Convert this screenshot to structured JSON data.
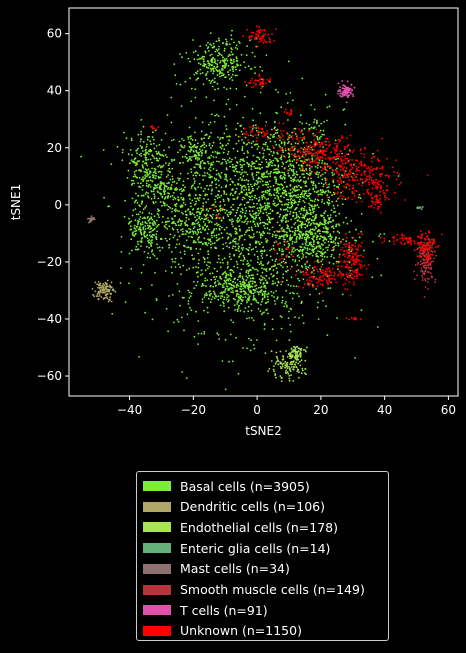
{
  "chart_data": {
    "type": "scatter",
    "title": "",
    "xlabel": "tSNE2",
    "ylabel": "tSNE1",
    "xlim": [
      -59,
      63
    ],
    "ylim": [
      -67,
      69
    ],
    "xticks": [
      -40,
      -20,
      0,
      20,
      40,
      60
    ],
    "yticks": [
      -60,
      -40,
      -20,
      0,
      20,
      40,
      60
    ],
    "xtick_labels": [
      "−40",
      "−20",
      "0",
      "20",
      "40",
      "60"
    ],
    "ytick_labels": [
      "−60",
      "−40",
      "−20",
      "0",
      "20",
      "40",
      "60"
    ],
    "grid": false,
    "legend_position": "bottom-center",
    "series": [
      {
        "name": "Basal cells (n=3905)",
        "color": "#7cee3a",
        "count": 3905,
        "clusters": [
          {
            "cx": -3,
            "cy": -5,
            "sx": 15,
            "sy": 19,
            "n": 1600
          },
          {
            "cx": 10,
            "cy": 10,
            "sx": 8,
            "sy": 9,
            "n": 500
          },
          {
            "cx": 17,
            "cy": -10,
            "sx": 5,
            "sy": 6,
            "n": 400
          },
          {
            "cx": -35,
            "cy": 15,
            "sx": 3,
            "sy": 6,
            "n": 180
          },
          {
            "cx": -30,
            "cy": 5,
            "sx": 4,
            "sy": 4,
            "n": 150
          },
          {
            "cx": -35,
            "cy": -10,
            "sx": 3,
            "sy": 4,
            "n": 150
          },
          {
            "cx": -12,
            "cy": 50,
            "sx": 5,
            "sy": 4,
            "n": 260
          },
          {
            "cx": -5,
            "cy": -30,
            "sx": 6,
            "sy": 4,
            "n": 300
          },
          {
            "cx": -18,
            "cy": 18,
            "sx": 3,
            "sy": 3,
            "n": 120
          },
          {
            "cx": -20,
            "cy": -5,
            "sx": 5,
            "sy": 6,
            "n": 200
          },
          {
            "cx": 18,
            "cy": 28,
            "sx": 1.5,
            "sy": 1.5,
            "n": 15
          },
          {
            "cx": 22,
            "cy": 5,
            "sx": 1.5,
            "sy": 1.5,
            "n": 10
          },
          {
            "cx": 8,
            "cy": -22,
            "sx": 4,
            "sy": 3,
            "n": 20
          }
        ]
      },
      {
        "name": "Dendritic cells (n=106)",
        "color": "#b0a766",
        "count": 106,
        "clusters": [
          {
            "cx": -48,
            "cy": -30,
            "sx": 1.5,
            "sy": 1.8,
            "n": 106
          }
        ]
      },
      {
        "name": "Endothelial cells (n=178)",
        "color": "#a9e451",
        "count": 178,
        "clusters": [
          {
            "cx": 12,
            "cy": -52,
            "sx": 1.5,
            "sy": 1.5,
            "n": 70
          },
          {
            "cx": 9,
            "cy": -57,
            "sx": 3,
            "sy": 2,
            "n": 108
          }
        ]
      },
      {
        "name": "Enteric glia cells (n=14)",
        "color": "#63b078",
        "count": 14,
        "clusters": [
          {
            "cx": 51,
            "cy": -1,
            "sx": 0.6,
            "sy": 0.2,
            "n": 14
          }
        ]
      },
      {
        "name": "Mast cells (n=34)",
        "color": "#8e7070",
        "count": 34,
        "clusters": [
          {
            "cx": -52,
            "cy": -5,
            "sx": 0.5,
            "sy": 0.5,
            "n": 34
          }
        ]
      },
      {
        "name": "Smooth muscle cells (n=149)",
        "color": "#b8343c",
        "count": 149,
        "clusters": [
          {
            "cx": 53,
            "cy": -19,
            "sx": 1.5,
            "sy": 4,
            "n": 149
          }
        ]
      },
      {
        "name": "T cells (n=91)",
        "color": "#e052ac",
        "count": 91,
        "clusters": [
          {
            "cx": 28,
            "cy": 40,
            "sx": 1.2,
            "sy": 1.2,
            "n": 91
          }
        ]
      },
      {
        "name": "Unknown (n=1150)",
        "color": "#ff0000",
        "count": 1150,
        "clusters": [
          {
            "cx": 1,
            "cy": 59,
            "sx": 2,
            "sy": 1.5,
            "n": 60
          },
          {
            "cx": 1,
            "cy": 43,
            "sx": 2,
            "sy": 1,
            "n": 40
          },
          {
            "cx": 10,
            "cy": 32,
            "sx": 1,
            "sy": 0.7,
            "n": 12
          },
          {
            "cx": 20,
            "cy": 18,
            "sx": 5,
            "sy": 3,
            "n": 200
          },
          {
            "cx": 32,
            "cy": 10,
            "sx": 6,
            "sy": 4,
            "n": 250
          },
          {
            "cx": 38,
            "cy": 3,
            "sx": 1.5,
            "sy": 3,
            "n": 60
          },
          {
            "cx": 30,
            "cy": -20,
            "sx": 2,
            "sy": 4,
            "n": 150
          },
          {
            "cx": 20,
            "cy": -25,
            "sx": 4,
            "sy": 2,
            "n": 120
          },
          {
            "cx": 47,
            "cy": -12,
            "sx": 3,
            "sy": 1,
            "n": 50
          },
          {
            "cx": 53,
            "cy": -14,
            "sx": 1.5,
            "sy": 3,
            "n": 80
          },
          {
            "cx": 30,
            "cy": -40,
            "sx": 1,
            "sy": 0.5,
            "n": 10
          },
          {
            "cx": -33,
            "cy": 27,
            "sx": 1,
            "sy": 0.5,
            "n": 8
          },
          {
            "cx": -14,
            "cy": -3,
            "sx": 2,
            "sy": 2,
            "n": 10
          },
          {
            "cx": 8,
            "cy": -16,
            "sx": 3,
            "sy": 3,
            "n": 20
          },
          {
            "cx": 12,
            "cy": 22,
            "sx": 3,
            "sy": 3,
            "n": 30
          },
          {
            "cx": 3,
            "cy": 25,
            "sx": 4,
            "sy": 2,
            "n": 50
          }
        ]
      }
    ]
  }
}
